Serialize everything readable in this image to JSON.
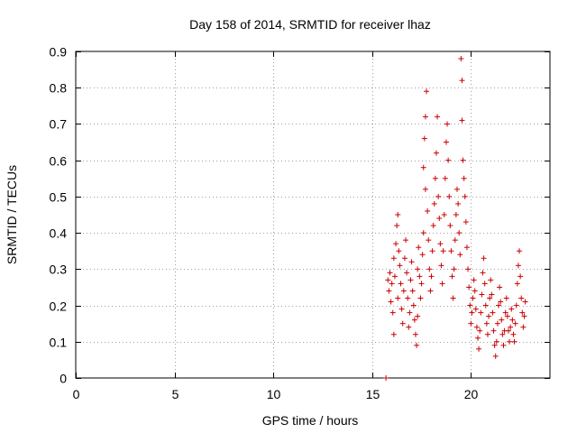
{
  "chart_data": {
    "type": "scatter",
    "title": "Day 158 of 2014, SRMTID for receiver lhaz",
    "xlabel": "GPS time / hours",
    "ylabel": "SRMTID / TECUs",
    "xlim": [
      0,
      24
    ],
    "ylim": [
      0,
      0.9
    ],
    "xticks": [
      0,
      5,
      10,
      15,
      20
    ],
    "xtick_labels": [
      "0",
      "5",
      "10",
      "15",
      "20"
    ],
    "yticks": [
      0,
      0.1,
      0.2,
      0.3,
      0.4,
      0.5,
      0.6,
      0.7,
      0.8,
      0.9
    ],
    "ytick_labels": [
      "0",
      "0.1",
      "0.2",
      "0.3",
      "0.4",
      "0.5",
      "0.6",
      "0.7",
      "0.8",
      "0.9"
    ],
    "grid": true,
    "marker": "+",
    "series": [
      {
        "name": "SRMTID",
        "color": "#cc0000",
        "points": [
          [
            15.7,
            0.0
          ],
          [
            15.8,
            0.27
          ],
          [
            15.85,
            0.24
          ],
          [
            15.9,
            0.29
          ],
          [
            15.95,
            0.21
          ],
          [
            16.0,
            0.26
          ],
          [
            16.05,
            0.18
          ],
          [
            16.1,
            0.12
          ],
          [
            16.1,
            0.33
          ],
          [
            16.15,
            0.28
          ],
          [
            16.2,
            0.37
          ],
          [
            16.25,
            0.42
          ],
          [
            16.3,
            0.45
          ],
          [
            16.3,
            0.22
          ],
          [
            16.35,
            0.35
          ],
          [
            16.4,
            0.31
          ],
          [
            16.45,
            0.26
          ],
          [
            16.5,
            0.19
          ],
          [
            16.55,
            0.15
          ],
          [
            16.6,
            0.24
          ],
          [
            16.65,
            0.33
          ],
          [
            16.7,
            0.38
          ],
          [
            16.75,
            0.29
          ],
          [
            16.8,
            0.22
          ],
          [
            16.85,
            0.14
          ],
          [
            16.9,
            0.18
          ],
          [
            16.95,
            0.27
          ],
          [
            17.0,
            0.32
          ],
          [
            17.05,
            0.24
          ],
          [
            17.1,
            0.2
          ],
          [
            17.15,
            0.16
          ],
          [
            17.2,
            0.12
          ],
          [
            17.25,
            0.09
          ],
          [
            17.3,
            0.17
          ],
          [
            17.3,
            0.3
          ],
          [
            17.35,
            0.36
          ],
          [
            17.4,
            0.28
          ],
          [
            17.45,
            0.22
          ],
          [
            17.5,
            0.26
          ],
          [
            17.55,
            0.34
          ],
          [
            17.6,
            0.4
          ],
          [
            17.6,
            0.58
          ],
          [
            17.65,
            0.66
          ],
          [
            17.7,
            0.72
          ],
          [
            17.75,
            0.79
          ],
          [
            17.7,
            0.52
          ],
          [
            17.8,
            0.46
          ],
          [
            17.85,
            0.38
          ],
          [
            17.9,
            0.3
          ],
          [
            17.95,
            0.24
          ],
          [
            18.0,
            0.28
          ],
          [
            18.05,
            0.35
          ],
          [
            18.1,
            0.42
          ],
          [
            18.15,
            0.48
          ],
          [
            18.2,
            0.55
          ],
          [
            18.25,
            0.62
          ],
          [
            18.3,
            0.72
          ],
          [
            18.35,
            0.5
          ],
          [
            18.4,
            0.44
          ],
          [
            18.45,
            0.37
          ],
          [
            18.5,
            0.31
          ],
          [
            18.55,
            0.26
          ],
          [
            18.6,
            0.35
          ],
          [
            18.65,
            0.45
          ],
          [
            18.7,
            0.55
          ],
          [
            18.75,
            0.65
          ],
          [
            18.8,
            0.7
          ],
          [
            18.85,
            0.6
          ],
          [
            18.9,
            0.5
          ],
          [
            18.95,
            0.42
          ],
          [
            19.0,
            0.35
          ],
          [
            19.05,
            0.28
          ],
          [
            19.1,
            0.22
          ],
          [
            19.15,
            0.3
          ],
          [
            19.2,
            0.38
          ],
          [
            19.25,
            0.45
          ],
          [
            19.3,
            0.52
          ],
          [
            19.35,
            0.48
          ],
          [
            19.4,
            0.4
          ],
          [
            19.45,
            0.34
          ],
          [
            19.5,
            0.88
          ],
          [
            19.55,
            0.82
          ],
          [
            19.55,
            0.71
          ],
          [
            19.6,
            0.6
          ],
          [
            19.65,
            0.55
          ],
          [
            19.7,
            0.5
          ],
          [
            19.75,
            0.43
          ],
          [
            19.8,
            0.36
          ],
          [
            19.85,
            0.3
          ],
          [
            19.9,
            0.25
          ],
          [
            19.95,
            0.2
          ],
          [
            20.0,
            0.15
          ],
          [
            20.05,
            0.18
          ],
          [
            20.1,
            0.22
          ],
          [
            20.15,
            0.27
          ],
          [
            20.2,
            0.24
          ],
          [
            20.25,
            0.19
          ],
          [
            20.3,
            0.14
          ],
          [
            20.35,
            0.11
          ],
          [
            20.4,
            0.08
          ],
          [
            20.45,
            0.13
          ],
          [
            20.5,
            0.18
          ],
          [
            20.55,
            0.23
          ],
          [
            20.6,
            0.29
          ],
          [
            20.65,
            0.33
          ],
          [
            20.7,
            0.26
          ],
          [
            20.75,
            0.2
          ],
          [
            20.8,
            0.15
          ],
          [
            20.85,
            0.12
          ],
          [
            20.9,
            0.17
          ],
          [
            20.95,
            0.22
          ],
          [
            21.0,
            0.27
          ],
          [
            21.05,
            0.23
          ],
          [
            21.1,
            0.18
          ],
          [
            21.15,
            0.13
          ],
          [
            21.2,
            0.09
          ],
          [
            21.25,
            0.06
          ],
          [
            21.3,
            0.1
          ],
          [
            21.35,
            0.15
          ],
          [
            21.4,
            0.2
          ],
          [
            21.45,
            0.25
          ],
          [
            21.5,
            0.21
          ],
          [
            21.55,
            0.16
          ],
          [
            21.6,
            0.12
          ],
          [
            21.65,
            0.09
          ],
          [
            21.7,
            0.13
          ],
          [
            21.75,
            0.18
          ],
          [
            21.8,
            0.22
          ],
          [
            21.85,
            0.17
          ],
          [
            21.9,
            0.13
          ],
          [
            21.95,
            0.1
          ],
          [
            22.0,
            0.14
          ],
          [
            22.05,
            0.19
          ],
          [
            22.1,
            0.16
          ],
          [
            22.15,
            0.12
          ],
          [
            22.2,
            0.1
          ],
          [
            22.25,
            0.15
          ],
          [
            22.3,
            0.2
          ],
          [
            22.35,
            0.26
          ],
          [
            22.4,
            0.31
          ],
          [
            22.45,
            0.35
          ],
          [
            22.5,
            0.28
          ],
          [
            22.55,
            0.22
          ],
          [
            22.6,
            0.18
          ],
          [
            22.65,
            0.14
          ],
          [
            22.7,
            0.17
          ],
          [
            22.75,
            0.21
          ]
        ]
      }
    ]
  }
}
